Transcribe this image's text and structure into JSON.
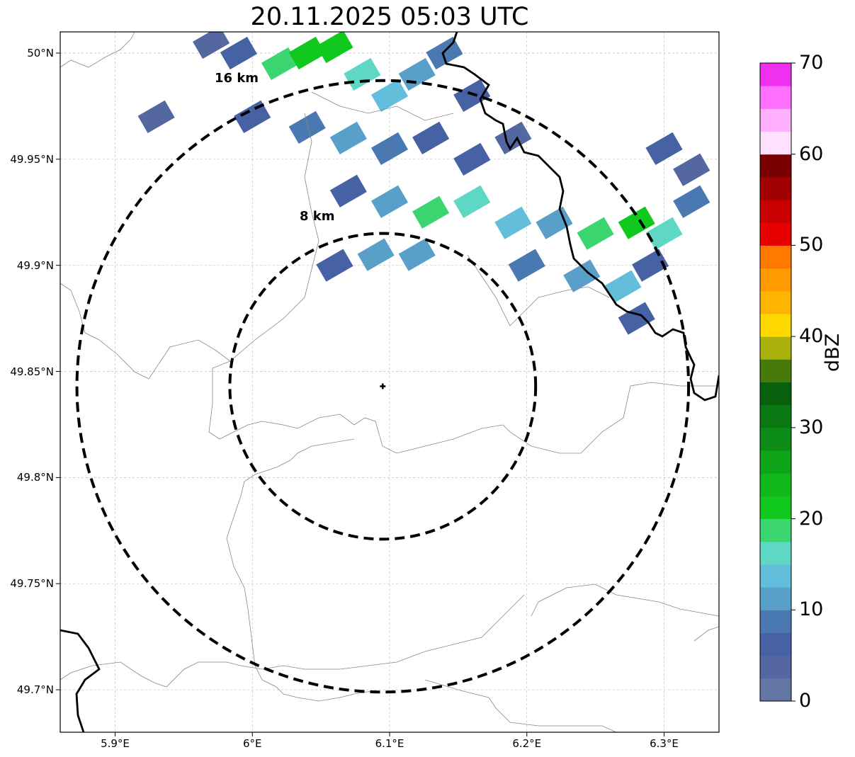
{
  "title": "20.11.2025 05:03 UTC",
  "lon_ticks": [
    {
      "value": 5.9,
      "label": "5.9°E"
    },
    {
      "value": 6.0,
      "label": "6°E"
    },
    {
      "value": 6.1,
      "label": "6.1°E"
    },
    {
      "value": 6.2,
      "label": "6.2°E"
    },
    {
      "value": 6.3,
      "label": "6.3°E"
    }
  ],
  "lat_ticks": [
    {
      "value": 50.0,
      "label": "50°N"
    },
    {
      "value": 49.95,
      "label": "49.95°N"
    },
    {
      "value": 49.9,
      "label": "49.9°N"
    },
    {
      "value": 49.85,
      "label": "49.85°N"
    },
    {
      "value": 49.8,
      "label": "49.8°N"
    },
    {
      "value": 49.75,
      "label": "49.75°N"
    },
    {
      "value": 49.7,
      "label": "49.7°N"
    }
  ],
  "extent": {
    "lon_min": 5.86,
    "lon_max": 6.34,
    "lat_min": 49.68,
    "lat_max": 50.01
  },
  "radar_center": {
    "lon": 6.095,
    "lat": 49.843
  },
  "range_rings": [
    {
      "radius_km": 8,
      "label": "8 km"
    },
    {
      "radius_km": 16,
      "label": "16 km"
    }
  ],
  "colorbar": {
    "unit": "dBZ",
    "min": 0,
    "max": 70,
    "tick_labels": [
      "0",
      "10",
      "20",
      "30",
      "40",
      "50",
      "60",
      "70"
    ],
    "colors": [
      "#6476a6",
      "#5467a0",
      "#4661a4",
      "#4a78b0",
      "#58a0c8",
      "#62bedb",
      "#5ed8c4",
      "#3cd670",
      "#10c81e",
      "#10b81a",
      "#0ea41a",
      "#0c8c16",
      "#0a7812",
      "#06600c",
      "#467a0a",
      "#aab00a",
      "#ffd800",
      "#ffb400",
      "#ff9a00",
      "#ff7800",
      "#e60000",
      "#c80000",
      "#a00000",
      "#780000",
      "#ffe0ff",
      "#ffb0ff",
      "#ff70ff",
      "#f030f0"
    ]
  },
  "reflectivity_cells": [
    {
      "lon": 5.97,
      "lat": 50.005,
      "dbz": 4
    },
    {
      "lon": 5.99,
      "lat": 50.0,
      "dbz": 5
    },
    {
      "lon": 6.02,
      "lat": 49.995,
      "dbz": 18
    },
    {
      "lon": 6.04,
      "lat": 50.0,
      "dbz": 22
    },
    {
      "lon": 6.06,
      "lat": 50.003,
      "dbz": 20
    },
    {
      "lon": 6.08,
      "lat": 49.99,
      "dbz": 16
    },
    {
      "lon": 6.1,
      "lat": 49.98,
      "dbz": 14
    },
    {
      "lon": 6.12,
      "lat": 49.99,
      "dbz": 10
    },
    {
      "lon": 6.14,
      "lat": 50.0,
      "dbz": 8
    },
    {
      "lon": 6.16,
      "lat": 49.98,
      "dbz": 6
    },
    {
      "lon": 6.0,
      "lat": 49.97,
      "dbz": 5
    },
    {
      "lon": 6.04,
      "lat": 49.965,
      "dbz": 8
    },
    {
      "lon": 6.07,
      "lat": 49.96,
      "dbz": 11
    },
    {
      "lon": 6.1,
      "lat": 49.955,
      "dbz": 9
    },
    {
      "lon": 6.13,
      "lat": 49.96,
      "dbz": 7
    },
    {
      "lon": 6.16,
      "lat": 49.95,
      "dbz": 5
    },
    {
      "lon": 6.19,
      "lat": 49.96,
      "dbz": 4
    },
    {
      "lon": 5.93,
      "lat": 49.97,
      "dbz": 3
    },
    {
      "lon": 6.07,
      "lat": 49.935,
      "dbz": 7
    },
    {
      "lon": 6.1,
      "lat": 49.93,
      "dbz": 12
    },
    {
      "lon": 6.13,
      "lat": 49.925,
      "dbz": 18
    },
    {
      "lon": 6.16,
      "lat": 49.93,
      "dbz": 16
    },
    {
      "lon": 6.19,
      "lat": 49.92,
      "dbz": 14
    },
    {
      "lon": 6.22,
      "lat": 49.92,
      "dbz": 12
    },
    {
      "lon": 6.25,
      "lat": 49.915,
      "dbz": 18
    },
    {
      "lon": 6.28,
      "lat": 49.92,
      "dbz": 22
    },
    {
      "lon": 6.3,
      "lat": 49.915,
      "dbz": 15
    },
    {
      "lon": 6.32,
      "lat": 49.93,
      "dbz": 8
    },
    {
      "lon": 6.06,
      "lat": 49.9,
      "dbz": 6
    },
    {
      "lon": 6.09,
      "lat": 49.905,
      "dbz": 12
    },
    {
      "lon": 6.12,
      "lat": 49.905,
      "dbz": 10
    },
    {
      "lon": 6.2,
      "lat": 49.9,
      "dbz": 9
    },
    {
      "lon": 6.24,
      "lat": 49.895,
      "dbz": 11
    },
    {
      "lon": 6.27,
      "lat": 49.89,
      "dbz": 13
    },
    {
      "lon": 6.29,
      "lat": 49.9,
      "dbz": 7
    },
    {
      "lon": 6.28,
      "lat": 49.875,
      "dbz": 5
    },
    {
      "lon": 6.3,
      "lat": 49.955,
      "dbz": 6
    },
    {
      "lon": 6.32,
      "lat": 49.945,
      "dbz": 4
    }
  ]
}
